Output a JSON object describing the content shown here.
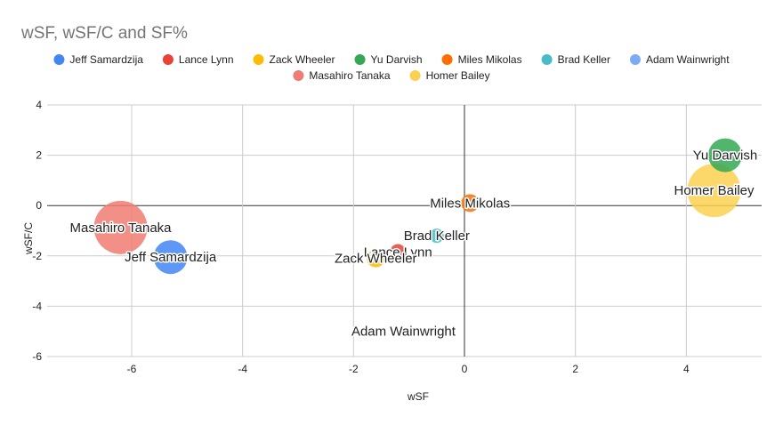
{
  "chart_data": {
    "type": "scatter",
    "subtype": "bubble",
    "title": "wSF, wSF/C and SF%",
    "xlabel": "wSF",
    "ylabel": "wSF/C",
    "xlim": [
      -7.5,
      5.4
    ],
    "ylim": [
      -6,
      4
    ],
    "xticks": [
      -6,
      -4,
      -2,
      0,
      2,
      4
    ],
    "yticks": [
      4,
      2,
      0,
      -2,
      -4,
      -6
    ],
    "grid": true,
    "legend_position": "top",
    "series": [
      {
        "name": "Jeff Samardzija",
        "color": "#4285f4",
        "x": -5.3,
        "y": -2.05,
        "size": 19
      },
      {
        "name": "Lance Lynn",
        "color": "#ea4335",
        "x": -1.2,
        "y": -1.85,
        "size": 9
      },
      {
        "name": "Zack Wheeler",
        "color": "#fbbc04",
        "x": -1.6,
        "y": -2.1,
        "size": 10
      },
      {
        "name": "Yu Darvish",
        "color": "#34a853",
        "x": 4.7,
        "y": 2.0,
        "size": 19
      },
      {
        "name": "Miles Mikolas",
        "color": "#ff6d01",
        "x": 0.1,
        "y": 0.1,
        "size": 10
      },
      {
        "name": "Brad Keller",
        "color": "#46bdc6",
        "x": -0.5,
        "y": -1.2,
        "size": 8
      },
      {
        "name": "Adam Wainwright",
        "color": "#7baaf7",
        "x": -1.1,
        "y": -5.0,
        "size": 1
      },
      {
        "name": "Masahiro Tanaka",
        "color": "#f07b72",
        "x": -6.2,
        "y": -0.87,
        "size": 30
      },
      {
        "name": "Homer Bailey",
        "color": "#fcd04f",
        "x": 4.5,
        "y": 0.6,
        "size": 30
      }
    ]
  }
}
